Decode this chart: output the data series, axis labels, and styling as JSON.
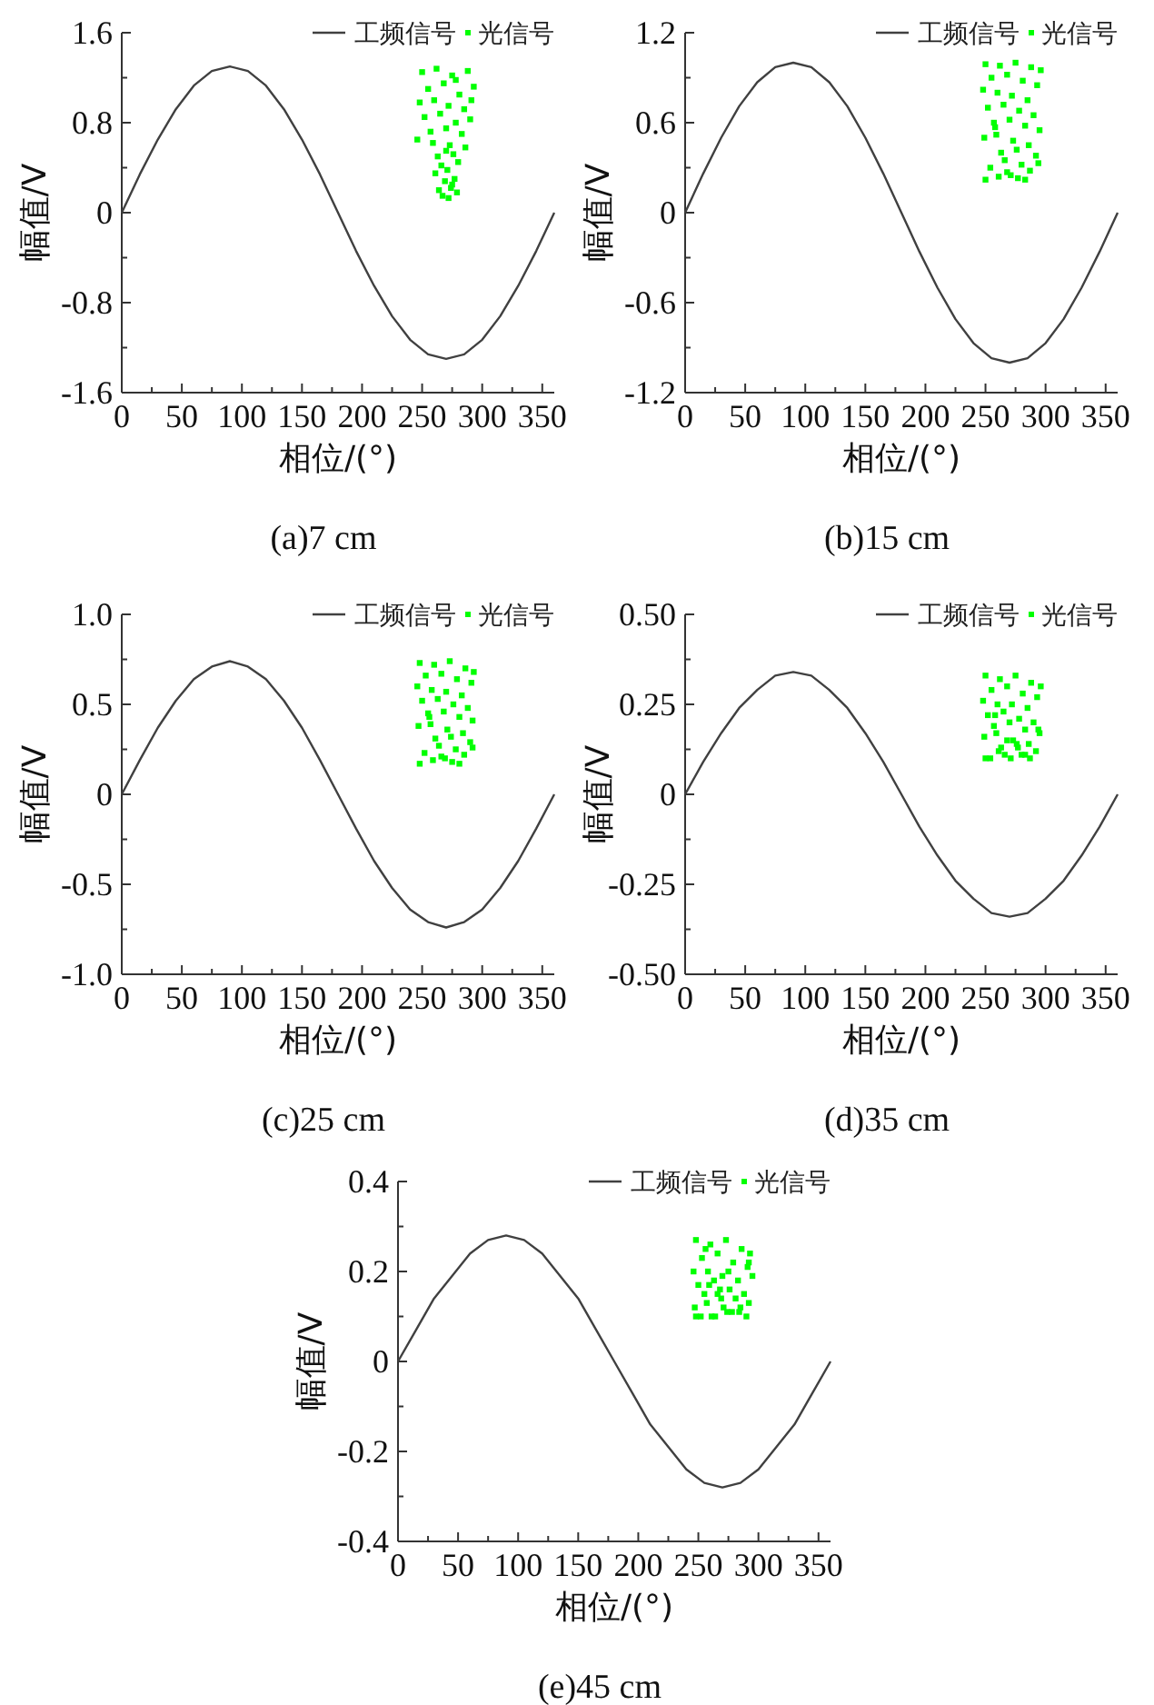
{
  "chart_data": [
    {
      "type": "line",
      "xlabel": "相位/(°)",
      "ylabel": "幅值/V",
      "annotations": [
        "(a)7 cm"
      ],
      "xlim": [
        0,
        360
      ],
      "xticks": [
        0,
        50,
        100,
        150,
        200,
        250,
        300,
        350
      ],
      "ylim": [
        -1.6,
        1.6
      ],
      "yticks": [
        -1.6,
        -0.8,
        0,
        0.8,
        1.6
      ],
      "grid": false,
      "legend": "top right",
      "series": [
        {
          "name": "工频信号",
          "type": "line",
          "color": "#404040",
          "x": [
            0,
            15,
            30,
            45,
            60,
            75,
            90,
            105,
            120,
            135,
            150,
            165,
            180,
            195,
            210,
            225,
            240,
            255,
            270,
            285,
            300,
            315,
            330,
            345,
            360
          ],
          "values": [
            0,
            0.34,
            0.65,
            0.92,
            1.13,
            1.26,
            1.3,
            1.26,
            1.13,
            0.92,
            0.65,
            0.34,
            0,
            -0.34,
            -0.65,
            -0.92,
            -1.13,
            -1.26,
            -1.3,
            -1.26,
            -1.13,
            -0.92,
            -0.65,
            -0.34,
            0
          ]
        },
        {
          "name": "光信号",
          "type": "scatter",
          "marker": "square",
          "color": "#00ff00",
          "x": [
            250,
            262,
            275,
            288,
            255,
            268,
            281,
            293,
            248,
            260,
            272,
            285,
            252,
            265,
            278,
            290,
            257,
            270,
            283,
            246,
            259,
            273,
            286,
            263,
            276,
            280,
            266,
            271,
            261,
            277,
            269,
            274,
            264,
            279,
            267,
            272,
            275,
            270,
            291,
            278
          ],
          "values": [
            1.25,
            1.28,
            1.22,
            1.26,
            1.1,
            1.15,
            1.05,
            1.12,
            0.98,
            1.0,
            0.95,
            0.92,
            0.85,
            0.88,
            0.8,
            0.83,
            0.72,
            0.75,
            0.7,
            0.65,
            0.62,
            0.6,
            0.58,
            0.5,
            0.52,
            0.45,
            0.42,
            0.38,
            0.35,
            0.3,
            0.28,
            0.22,
            0.2,
            0.18,
            0.15,
            0.13,
            0.25,
            0.55,
            1.0,
            1.18
          ]
        }
      ]
    },
    {
      "type": "line",
      "xlabel": "相位/(°)",
      "ylabel": "幅值/V",
      "annotations": [
        "(b)15 cm"
      ],
      "xlim": [
        0,
        360
      ],
      "xticks": [
        0,
        50,
        100,
        150,
        200,
        250,
        300,
        350
      ],
      "ylim": [
        -1.2,
        1.2
      ],
      "yticks": [
        -1.2,
        -0.6,
        0,
        0.6,
        1.2
      ],
      "grid": false,
      "legend": "top right",
      "series": [
        {
          "name": "工频信号",
          "type": "line",
          "color": "#404040",
          "x": [
            0,
            15,
            30,
            45,
            60,
            75,
            90,
            105,
            120,
            135,
            150,
            165,
            180,
            195,
            210,
            225,
            240,
            255,
            270,
            285,
            300,
            315,
            330,
            345,
            360
          ],
          "values": [
            0,
            0.26,
            0.5,
            0.71,
            0.87,
            0.97,
            1.0,
            0.97,
            0.87,
            0.71,
            0.5,
            0.26,
            0,
            -0.26,
            -0.5,
            -0.71,
            -0.87,
            -0.97,
            -1.0,
            -0.97,
            -0.87,
            -0.71,
            -0.5,
            -0.26,
            0
          ]
        },
        {
          "name": "光信号",
          "type": "scatter",
          "marker": "square",
          "color": "#00ff00",
          "x": [
            250,
            262,
            275,
            288,
            296,
            255,
            268,
            281,
            293,
            248,
            260,
            272,
            285,
            252,
            265,
            278,
            290,
            257,
            270,
            283,
            295,
            249,
            259,
            273,
            286,
            263,
            276,
            292,
            266,
            280,
            254,
            287,
            271,
            261,
            277,
            250,
            283,
            268,
            294,
            258
          ],
          "values": [
            0.99,
            0.98,
            1.0,
            0.97,
            0.95,
            0.9,
            0.92,
            0.88,
            0.85,
            0.82,
            0.8,
            0.78,
            0.75,
            0.7,
            0.72,
            0.68,
            0.65,
            0.6,
            0.62,
            0.58,
            0.55,
            0.5,
            0.52,
            0.48,
            0.45,
            0.4,
            0.42,
            0.38,
            0.35,
            0.32,
            0.3,
            0.28,
            0.25,
            0.24,
            0.23,
            0.22,
            0.22,
            0.27,
            0.33,
            0.57
          ]
        }
      ]
    },
    {
      "type": "line",
      "xlabel": "相位/(°)",
      "ylabel": "幅值/V",
      "annotations": [
        "(c)25 cm"
      ],
      "xlim": [
        0,
        360
      ],
      "xticks": [
        0,
        50,
        100,
        150,
        200,
        250,
        300,
        350
      ],
      "ylim": [
        -1.0,
        1.0
      ],
      "yticks": [
        {
          "value": -1.0,
          "label": "-1.0"
        },
        -0.5,
        0,
        0.5,
        {
          "value": 1.0,
          "label": "1.0"
        }
      ],
      "grid": false,
      "legend": "top right",
      "series": [
        {
          "name": "工频信号",
          "type": "line",
          "color": "#404040",
          "x": [
            0,
            15,
            30,
            45,
            60,
            75,
            90,
            105,
            120,
            135,
            150,
            165,
            180,
            195,
            210,
            225,
            240,
            255,
            270,
            285,
            300,
            315,
            330,
            345,
            360
          ],
          "values": [
            0,
            0.19,
            0.37,
            0.52,
            0.64,
            0.71,
            0.74,
            0.71,
            0.64,
            0.52,
            0.37,
            0.19,
            0,
            -0.19,
            -0.37,
            -0.52,
            -0.64,
            -0.71,
            -0.74,
            -0.71,
            -0.64,
            -0.52,
            -0.37,
            -0.19,
            0
          ]
        },
        {
          "name": "光信号",
          "type": "scatter",
          "marker": "square",
          "color": "#00ff00",
          "x": [
            248,
            260,
            273,
            286,
            293,
            253,
            266,
            279,
            291,
            246,
            258,
            270,
            283,
            250,
            263,
            276,
            288,
            255,
            268,
            281,
            292,
            247,
            257,
            271,
            284,
            261,
            274,
            290,
            264,
            278,
            252,
            285,
            269,
            259,
            275,
            248,
            281,
            266,
            292,
            256
          ],
          "values": [
            0.73,
            0.72,
            0.74,
            0.7,
            0.68,
            0.66,
            0.67,
            0.64,
            0.62,
            0.6,
            0.58,
            0.57,
            0.55,
            0.52,
            0.53,
            0.5,
            0.48,
            0.45,
            0.46,
            0.43,
            0.41,
            0.38,
            0.39,
            0.36,
            0.34,
            0.31,
            0.32,
            0.29,
            0.27,
            0.25,
            0.23,
            0.22,
            0.2,
            0.19,
            0.18,
            0.17,
            0.17,
            0.21,
            0.26,
            0.43
          ]
        }
      ]
    },
    {
      "type": "line",
      "xlabel": "相位/(°)",
      "ylabel": "幅值/V",
      "annotations": [
        "(d)35 cm"
      ],
      "xlim": [
        0,
        360
      ],
      "xticks": [
        0,
        50,
        100,
        150,
        200,
        250,
        300,
        350
      ],
      "ylim": [
        -0.5,
        0.5
      ],
      "yticks": [
        {
          "value": -0.5,
          "label": "-0.50"
        },
        -0.25,
        0,
        0.25,
        {
          "value": 0.5,
          "label": "0.50"
        }
      ],
      "grid": false,
      "legend": "top right",
      "series": [
        {
          "name": "工频信号",
          "type": "line",
          "color": "#404040",
          "x": [
            0,
            15,
            30,
            45,
            60,
            75,
            90,
            105,
            120,
            135,
            150,
            165,
            180,
            195,
            210,
            225,
            240,
            255,
            270,
            285,
            300,
            315,
            330,
            345,
            360
          ],
          "values": [
            0,
            0.09,
            0.17,
            0.24,
            0.29,
            0.33,
            0.34,
            0.33,
            0.29,
            0.24,
            0.17,
            0.09,
            0,
            -0.09,
            -0.17,
            -0.24,
            -0.29,
            -0.33,
            -0.34,
            -0.33,
            -0.29,
            -0.24,
            -0.17,
            -0.09,
            0
          ]
        },
        {
          "name": "光信号",
          "type": "scatter",
          "marker": "square",
          "color": "#00ff00",
          "x": [
            250,
            262,
            275,
            288,
            296,
            255,
            268,
            281,
            293,
            248,
            260,
            272,
            285,
            252,
            265,
            278,
            290,
            257,
            270,
            283,
            295,
            249,
            259,
            273,
            286,
            263,
            276,
            292,
            266,
            280,
            254,
            287,
            271,
            261,
            277,
            250,
            283,
            268,
            294,
            258
          ],
          "values": [
            0.33,
            0.32,
            0.33,
            0.31,
            0.3,
            0.29,
            0.3,
            0.28,
            0.27,
            0.26,
            0.25,
            0.25,
            0.24,
            0.22,
            0.23,
            0.21,
            0.2,
            0.19,
            0.2,
            0.18,
            0.17,
            0.16,
            0.17,
            0.15,
            0.14,
            0.13,
            0.14,
            0.12,
            0.11,
            0.11,
            0.1,
            0.1,
            0.1,
            0.12,
            0.13,
            0.1,
            0.11,
            0.15,
            0.18,
            0.22
          ]
        }
      ]
    },
    {
      "type": "line",
      "xlabel": "相位/(°)",
      "ylabel": "幅值/V",
      "annotations": [
        "(e)45 cm"
      ],
      "xlim": [
        0,
        360
      ],
      "xticks": [
        0,
        50,
        100,
        150,
        200,
        250,
        300,
        350
      ],
      "ylim": [
        -0.4,
        0.4
      ],
      "yticks": [
        -0.4,
        -0.2,
        0,
        0.2,
        0.4
      ],
      "grid": false,
      "legend": "top right",
      "series": [
        {
          "name": "工频信号",
          "type": "line",
          "color": "#404040",
          "x": [
            0,
            15,
            30,
            45,
            60,
            75,
            90,
            105,
            120,
            135,
            150,
            165,
            180,
            195,
            210,
            225,
            240,
            255,
            270,
            285,
            300,
            315,
            330,
            345,
            360
          ],
          "values": [
            0,
            0.07,
            0.14,
            0.19,
            0.24,
            0.27,
            0.28,
            0.27,
            0.24,
            0.19,
            0.14,
            0.07,
            0,
            -0.07,
            -0.14,
            -0.19,
            -0.24,
            -0.27,
            -0.28,
            -0.27,
            -0.24,
            -0.19,
            -0.14,
            -0.07,
            0
          ]
        },
        {
          "name": "光信号",
          "type": "scatter",
          "marker": "square",
          "color": "#00ff00",
          "x": [
            248,
            260,
            273,
            286,
            293,
            253,
            266,
            279,
            291,
            246,
            258,
            270,
            283,
            250,
            263,
            276,
            288,
            255,
            268,
            281,
            292,
            247,
            257,
            271,
            284,
            261,
            274,
            290,
            264,
            278,
            252,
            285,
            269,
            259,
            275,
            248,
            295,
            266,
            292,
            256
          ],
          "values": [
            0.27,
            0.26,
            0.27,
            0.25,
            0.24,
            0.23,
            0.24,
            0.22,
            0.21,
            0.2,
            0.2,
            0.19,
            0.18,
            0.17,
            0.18,
            0.16,
            0.15,
            0.15,
            0.16,
            0.14,
            0.13,
            0.12,
            0.13,
            0.12,
            0.11,
            0.1,
            0.11,
            0.1,
            0.1,
            0.11,
            0.1,
            0.12,
            0.14,
            0.17,
            0.2,
            0.1,
            0.19,
            0.15,
            0.22,
            0.25
          ]
        }
      ]
    }
  ]
}
